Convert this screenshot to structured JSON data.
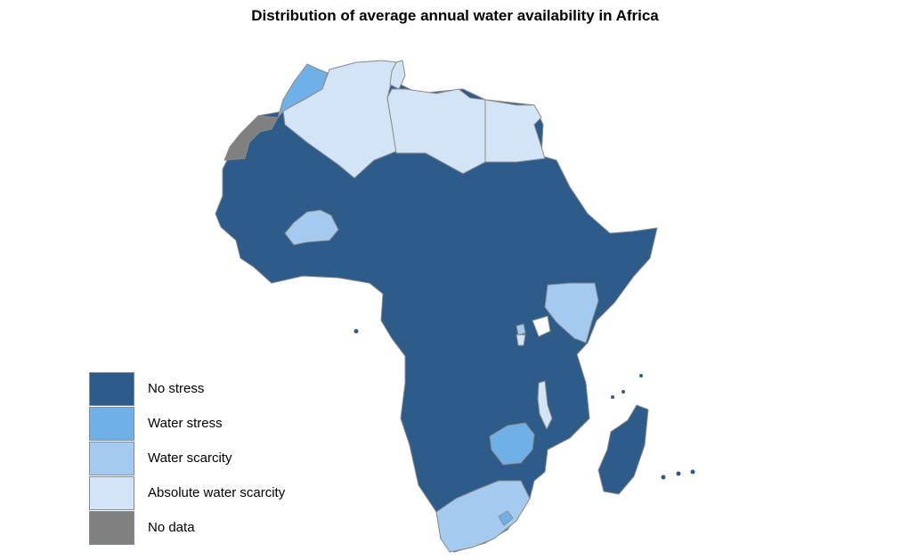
{
  "title": "Distribution of average annual water availability in Africa",
  "colors": {
    "no_stress": "#2d5b8a",
    "water_stress": "#6fb0e6",
    "water_scarcity": "#a4cbef",
    "absolute_water_scarcity": "#d3e4f6",
    "no_data": "#808080",
    "border": "#8a8a8a"
  },
  "legend": [
    {
      "key": "no_stress",
      "label": "No stress",
      "color": "#2d5b8a"
    },
    {
      "key": "water_stress",
      "label": "Water stress",
      "color": "#6fb0e6"
    },
    {
      "key": "water_scarcity",
      "label": "Water scarcity",
      "color": "#a4cbef"
    },
    {
      "key": "absolute_water_scarcity",
      "label": "Absolute water scarcity",
      "color": "#d3e4f6"
    },
    {
      "key": "no_data",
      "label": "No data",
      "color": "#808080"
    }
  ],
  "regions": [
    {
      "name": "western-sahara",
      "category": "no_data"
    },
    {
      "name": "morocco",
      "category": "water_stress"
    },
    {
      "name": "algeria",
      "category": "absolute_water_scarcity"
    },
    {
      "name": "tunisia",
      "category": "absolute_water_scarcity"
    },
    {
      "name": "libya",
      "category": "absolute_water_scarcity"
    },
    {
      "name": "egypt",
      "category": "absolute_water_scarcity"
    },
    {
      "name": "burkina-faso",
      "category": "water_scarcity"
    },
    {
      "name": "kenya",
      "category": "water_scarcity"
    },
    {
      "name": "rwanda",
      "category": "water_scarcity"
    },
    {
      "name": "burundi",
      "category": "absolute_water_scarcity"
    },
    {
      "name": "malawi",
      "category": "absolute_water_scarcity"
    },
    {
      "name": "zimbabwe",
      "category": "water_stress"
    },
    {
      "name": "south-africa",
      "category": "water_scarcity"
    },
    {
      "name": "lesotho",
      "category": "water_stress"
    },
    {
      "name": "madagascar",
      "category": "no_stress"
    },
    {
      "name": "rest-of-africa",
      "category": "no_stress"
    }
  ]
}
